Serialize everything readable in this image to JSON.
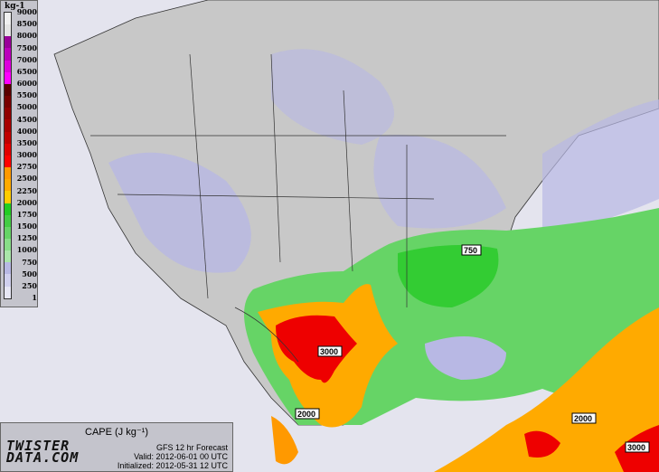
{
  "legend": {
    "unit": "kg-1",
    "ticks": [
      "9000",
      "8500",
      "8000",
      "7500",
      "7000",
      "6500",
      "6000",
      "5500",
      "5000",
      "4500",
      "4000",
      "3500",
      "3000",
      "2750",
      "2500",
      "2250",
      "2000",
      "1750",
      "1500",
      "1250",
      "1000",
      "750",
      "500",
      "250",
      "1"
    ],
    "colors": [
      "#f0f0f0",
      "#e4e4e4",
      "#990099",
      "#bb00bb",
      "#dd00dd",
      "#ff00ff",
      "#5a0000",
      "#780000",
      "#900000",
      "#a80000",
      "#c00000",
      "#e00000",
      "#ff0000",
      "#ff9900",
      "#ffaa00",
      "#ffcc00",
      "#22cc22",
      "#44cc44",
      "#66d466",
      "#88dd88",
      "#aae6aa",
      "#b8b8e4",
      "#d0d0ee",
      "#e6e6f4"
    ]
  },
  "info": {
    "title": "CAPE (J kg⁻¹)",
    "model": "GFS 12 hr Forecast",
    "valid": "Valid: 2012-06-01 00 UTC",
    "initialized": "Initialized: 2012-05-31 12 UTC",
    "logo_line1": "TWISTER",
    "logo_line2": "DATA.COM"
  },
  "contour_labels": [
    "3000",
    "2000",
    "750",
    "2000",
    "3000"
  ],
  "colors": {
    "land": "#c8c8c8",
    "ocean": "#e4e4ee",
    "border": "#333333"
  }
}
